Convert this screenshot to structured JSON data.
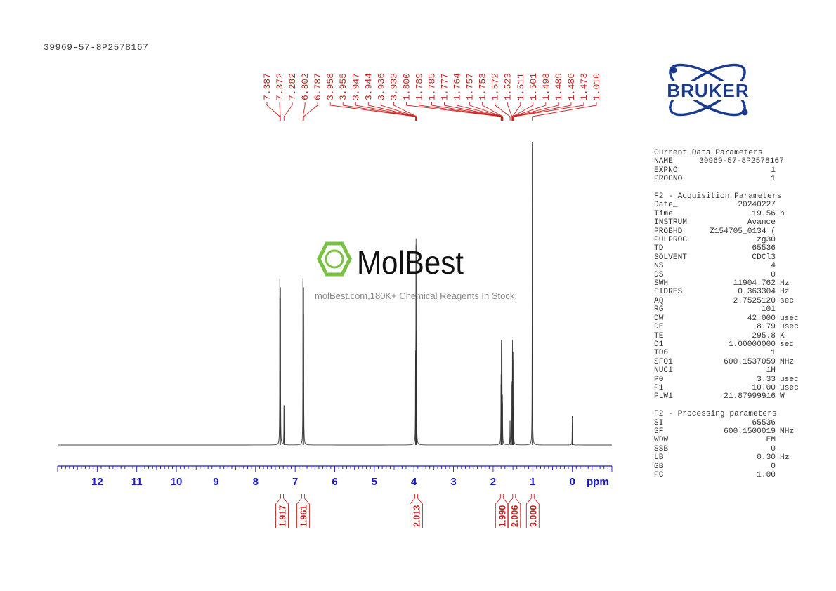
{
  "sample_title": "39969-57-8P2578167",
  "logo": {
    "text": "BRUKER",
    "color": "#1a3a8f"
  },
  "watermark": {
    "brand": "MolBest",
    "tagline": "molBest.com,180K+ Chemical Reagents In Stock.",
    "color": "#7ac143"
  },
  "parameters": {
    "sections": [
      {
        "title": "Current Data Parameters",
        "rows": [
          [
            "NAME",
            "39969-57-8P2578167",
            ""
          ],
          [
            "EXPNO",
            "1",
            ""
          ],
          [
            "PROCNO",
            "1",
            ""
          ]
        ]
      },
      {
        "title": "F2 - Acquisition Parameters",
        "rows": [
          [
            "Date_",
            "20240227",
            ""
          ],
          [
            "Time",
            "19.56",
            "h"
          ],
          [
            "INSTRUM",
            "Avance",
            ""
          ],
          [
            "PROBHD",
            "Z154705_0134 (",
            ""
          ],
          [
            "PULPROG",
            "zg30",
            ""
          ],
          [
            "TD",
            "65536",
            ""
          ],
          [
            "SOLVENT",
            "CDCl3",
            ""
          ],
          [
            "NS",
            "4",
            ""
          ],
          [
            "DS",
            "0",
            ""
          ],
          [
            "SWH",
            "11904.762",
            "Hz"
          ],
          [
            "FIDRES",
            "0.363304",
            "Hz"
          ],
          [
            "AQ",
            "2.7525120",
            "sec"
          ],
          [
            "RG",
            "101",
            ""
          ],
          [
            "DW",
            "42.000",
            "usec"
          ],
          [
            "DE",
            "8.79",
            "usec"
          ],
          [
            "TE",
            "295.8",
            "K"
          ],
          [
            "D1",
            "1.00000000",
            "sec"
          ],
          [
            "TD0",
            "1",
            ""
          ],
          [
            "SFO1",
            "600.1537059",
            "MHz"
          ],
          [
            "NUC1",
            "1H",
            ""
          ],
          [
            "P0",
            "3.33",
            "usec"
          ],
          [
            "P1",
            "10.00",
            "usec"
          ],
          [
            "PLW1",
            "21.87999916",
            "W"
          ]
        ]
      },
      {
        "title": "F2 - Processing parameters",
        "rows": [
          [
            "SI",
            "65536",
            ""
          ],
          [
            "SF",
            "600.1500019",
            "MHz"
          ],
          [
            "WDW",
            "EM",
            ""
          ],
          [
            "SSB",
            "0",
            ""
          ],
          [
            "LB",
            "0.30",
            "Hz"
          ],
          [
            "GB",
            "0",
            ""
          ],
          [
            "PC",
            "1.00",
            ""
          ]
        ]
      }
    ]
  },
  "chart_data": {
    "type": "line",
    "title": "",
    "xlabel": "ppm",
    "xlim": [
      13.0,
      -1.0
    ],
    "x_reversed": true,
    "xticks": [
      12,
      11,
      10,
      9,
      8,
      7,
      6,
      5,
      4,
      3,
      2,
      1,
      0
    ],
    "tick_labels": [
      "12",
      "11",
      "10",
      "9",
      "8",
      "7",
      "6",
      "5",
      "4",
      "3",
      "2",
      "1",
      "0"
    ],
    "axis_color": "#1a1acc",
    "label_color": "#cc2222",
    "peaks": [
      {
        "ppm": 7.387,
        "intensity": 55
      },
      {
        "ppm": 7.372,
        "intensity": 52
      },
      {
        "ppm": 7.282,
        "intensity": 13
      },
      {
        "ppm": 6.802,
        "intensity": 55
      },
      {
        "ppm": 6.787,
        "intensity": 52
      },
      {
        "ppm": 3.958,
        "intensity": 30
      },
      {
        "ppm": 3.947,
        "intensity": 66
      },
      {
        "ppm": 3.936,
        "intensity": 33
      },
      {
        "ppm": 1.8,
        "intensity": 20
      },
      {
        "ppm": 1.789,
        "intensity": 34
      },
      {
        "ppm": 1.777,
        "intensity": 30
      },
      {
        "ppm": 1.764,
        "intensity": 14
      },
      {
        "ppm": 1.572,
        "intensity": 8
      },
      {
        "ppm": 1.523,
        "intensity": 20
      },
      {
        "ppm": 1.511,
        "intensity": 31
      },
      {
        "ppm": 1.498,
        "intensity": 28
      },
      {
        "ppm": 1.486,
        "intensity": 12
      },
      {
        "ppm": 1.01,
        "intensity": 100
      },
      {
        "ppm": 0.0,
        "intensity": 9.5
      }
    ],
    "peak_labels": [
      "7.387",
      "7.372",
      "7.282",
      "6.802",
      "6.787",
      "3.958",
      "3.955",
      "3.947",
      "3.944",
      "3.936",
      "3.933",
      "1.800",
      "1.789",
      "1.785",
      "1.777",
      "1.764",
      "1.757",
      "1.753",
      "1.572",
      "1.523",
      "1.511",
      "1.501",
      "1.498",
      "1.489",
      "1.486",
      "1.473",
      "1.010"
    ],
    "integrals": [
      {
        "ppm": 7.33,
        "value": "1.917"
      },
      {
        "ppm": 6.8,
        "value": "1.961"
      },
      {
        "ppm": 3.94,
        "value": "2.013"
      },
      {
        "ppm": 1.78,
        "value": "1.990"
      },
      {
        "ppm": 1.47,
        "value": "2.006"
      },
      {
        "ppm": 1.0,
        "value": "3.000"
      }
    ]
  }
}
